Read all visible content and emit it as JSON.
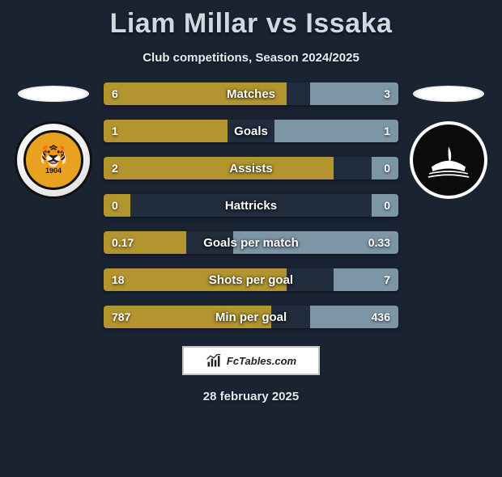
{
  "title": "Liam Millar vs Issaka",
  "subtitle": "Club competitions, Season 2024/2025",
  "date": "28 february 2025",
  "watermark_text": "FcTables.com",
  "left_crest_year": "1904",
  "colors": {
    "background": "#1a2332",
    "bar_track": "#212c3c",
    "left_fill": "#b2952f",
    "right_fill": "#7c96a6",
    "text": "#ffffff",
    "title": "#d0d8e0"
  },
  "stats": [
    {
      "label": "Matches",
      "left_val": "6",
      "right_val": "3",
      "left_pct": 62,
      "right_pct": 30
    },
    {
      "label": "Goals",
      "left_val": "1",
      "right_val": "1",
      "left_pct": 42,
      "right_pct": 42
    },
    {
      "label": "Assists",
      "left_val": "2",
      "right_val": "0",
      "left_pct": 78,
      "right_pct": 9
    },
    {
      "label": "Hattricks",
      "left_val": "0",
      "right_val": "0",
      "left_pct": 9,
      "right_pct": 9
    },
    {
      "label": "Goals per match",
      "left_val": "0.17",
      "right_val": "0.33",
      "left_pct": 28,
      "right_pct": 56
    },
    {
      "label": "Shots per goal",
      "left_val": "18",
      "right_val": "7",
      "left_pct": 62,
      "right_pct": 22
    },
    {
      "label": "Min per goal",
      "left_val": "787",
      "right_val": "436",
      "left_pct": 57,
      "right_pct": 30
    }
  ]
}
